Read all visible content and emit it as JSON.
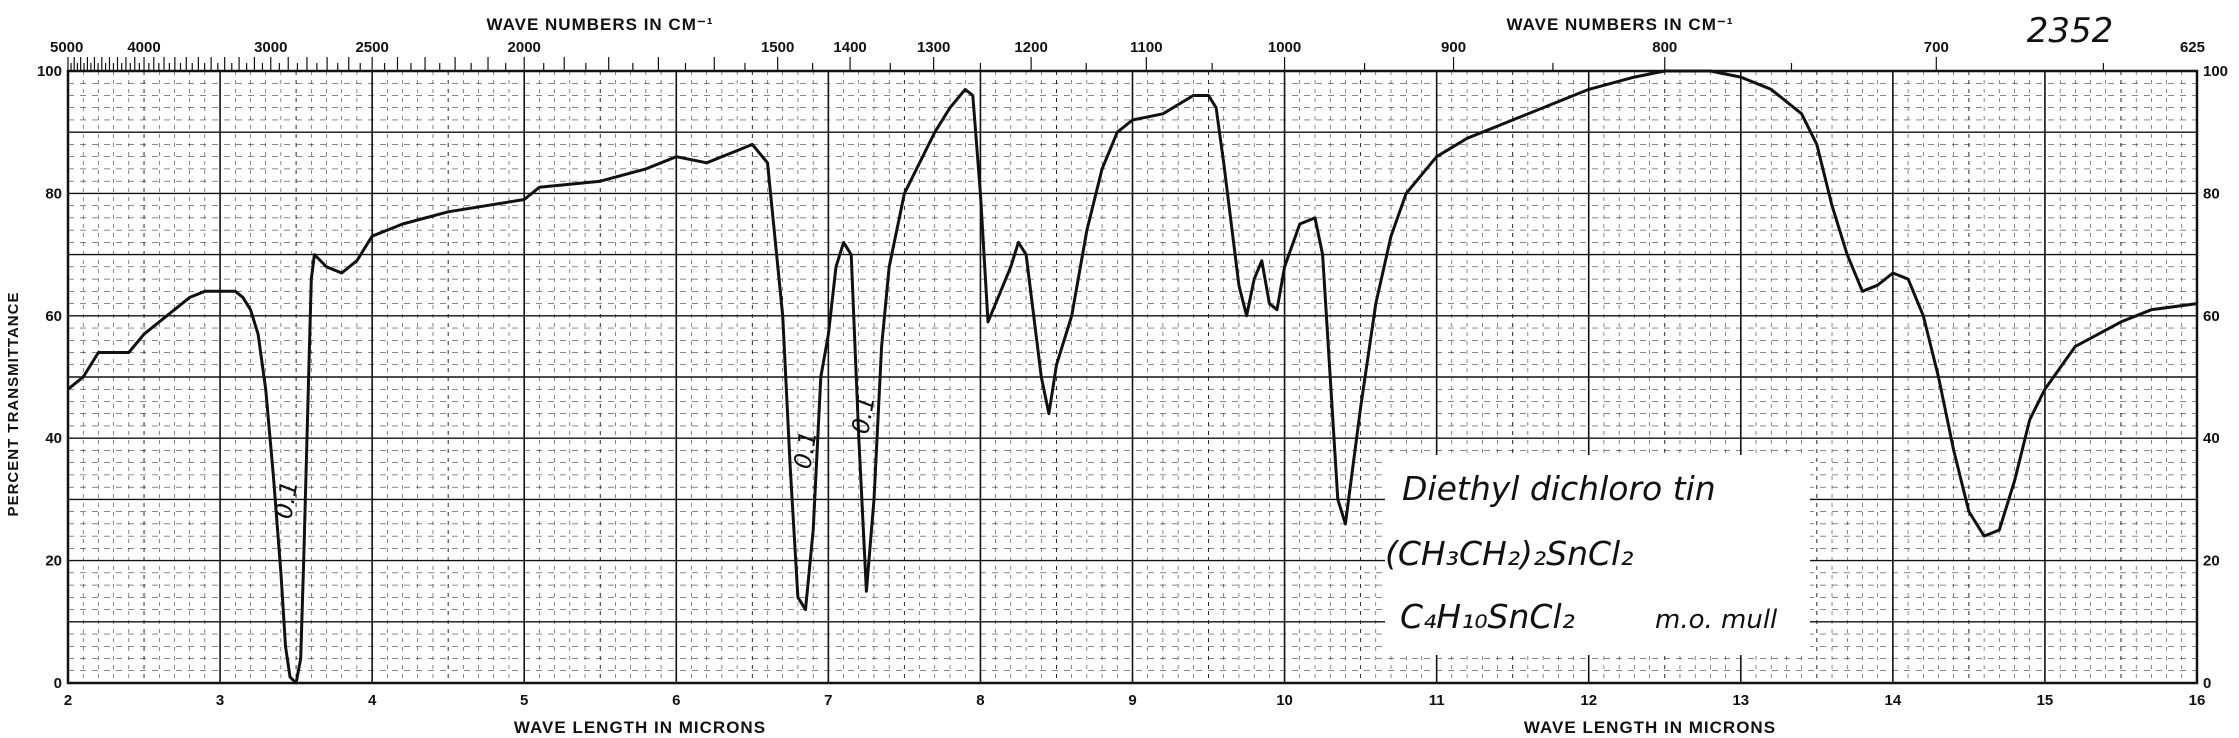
{
  "chart_data": {
    "type": "line",
    "title": "",
    "top_axis_title": "WAVE NUMBERS IN CM⁻¹",
    "top_axis_title_right": "WAVE NUMBERS IN CM⁻¹",
    "xlabel": "WAVE LENGTH IN MICRONS",
    "xlabel_right": "WAVE LENGTH IN MICRONS",
    "ylabel": "PERCENT TRANSMITTANCE",
    "xlim": [
      2,
      16
    ],
    "ylim": [
      0,
      100
    ],
    "grid": true,
    "x_ticks": [
      "2",
      "3",
      "4",
      "5",
      "6",
      "7",
      "8",
      "9",
      "10",
      "11",
      "12",
      "13",
      "14",
      "15",
      "16"
    ],
    "y_ticks": [
      "0",
      "20",
      "40",
      "60",
      "80",
      "100"
    ],
    "top_ticks": [
      {
        "label": "5000",
        "wavenumber": 5000
      },
      {
        "label": "4000",
        "wavenumber": 4000
      },
      {
        "label": "3000",
        "wavenumber": 3000
      },
      {
        "label": "2500",
        "wavenumber": 2500
      },
      {
        "label": "2000",
        "wavenumber": 2000
      },
      {
        "label": "1500",
        "wavenumber": 1500
      },
      {
        "label": "1400",
        "wavenumber": 1400
      },
      {
        "label": "1300",
        "wavenumber": 1300
      },
      {
        "label": "1200",
        "wavenumber": 1200
      },
      {
        "label": "1100",
        "wavenumber": 1100
      },
      {
        "label": "1000",
        "wavenumber": 1000
      },
      {
        "label": "900",
        "wavenumber": 900
      },
      {
        "label": "800",
        "wavenumber": 800
      },
      {
        "label": "700",
        "wavenumber": 700
      },
      {
        "label": "625",
        "wavenumber": 625
      }
    ],
    "series": [
      {
        "points": [
          [
            2.0,
            48
          ],
          [
            2.1,
            50
          ],
          [
            2.2,
            54
          ],
          [
            2.3,
            54
          ],
          [
            2.4,
            54
          ],
          [
            2.5,
            57
          ],
          [
            2.6,
            59
          ],
          [
            2.7,
            61
          ],
          [
            2.8,
            63
          ],
          [
            2.9,
            64
          ],
          [
            3.0,
            64
          ],
          [
            3.1,
            64
          ],
          [
            3.15,
            63
          ],
          [
            3.2,
            61
          ],
          [
            3.25,
            57
          ],
          [
            3.3,
            48
          ],
          [
            3.35,
            34
          ],
          [
            3.4,
            18
          ],
          [
            3.43,
            6
          ],
          [
            3.46,
            1
          ],
          [
            3.5,
            0
          ],
          [
            3.53,
            4
          ],
          [
            3.55,
            20
          ],
          [
            3.58,
            48
          ],
          [
            3.6,
            66
          ],
          [
            3.62,
            70
          ],
          [
            3.7,
            68
          ],
          [
            3.8,
            67
          ],
          [
            3.9,
            69
          ],
          [
            4.0,
            73
          ],
          [
            4.1,
            74
          ],
          [
            4.2,
            75
          ],
          [
            4.5,
            77
          ],
          [
            5.0,
            79
          ],
          [
            5.1,
            81
          ],
          [
            5.5,
            82
          ],
          [
            5.8,
            84
          ],
          [
            6.0,
            86
          ],
          [
            6.2,
            85
          ],
          [
            6.4,
            87
          ],
          [
            6.5,
            88
          ],
          [
            6.6,
            85
          ],
          [
            6.7,
            60
          ],
          [
            6.75,
            35
          ],
          [
            6.8,
            14
          ],
          [
            6.85,
            12
          ],
          [
            6.9,
            25
          ],
          [
            6.95,
            50
          ],
          [
            7.0,
            57
          ],
          [
            7.05,
            68
          ],
          [
            7.1,
            72
          ],
          [
            7.15,
            70
          ],
          [
            7.2,
            40
          ],
          [
            7.25,
            15
          ],
          [
            7.3,
            30
          ],
          [
            7.35,
            55
          ],
          [
            7.4,
            68
          ],
          [
            7.5,
            80
          ],
          [
            7.6,
            85
          ],
          [
            7.7,
            90
          ],
          [
            7.8,
            94
          ],
          [
            7.9,
            97
          ],
          [
            7.95,
            96
          ],
          [
            8.0,
            80
          ],
          [
            8.05,
            59
          ],
          [
            8.1,
            62
          ],
          [
            8.2,
            68
          ],
          [
            8.25,
            72
          ],
          [
            8.3,
            70
          ],
          [
            8.4,
            50
          ],
          [
            8.45,
            44
          ],
          [
            8.5,
            52
          ],
          [
            8.6,
            60
          ],
          [
            8.7,
            74
          ],
          [
            8.8,
            84
          ],
          [
            8.9,
            90
          ],
          [
            9.0,
            92
          ],
          [
            9.2,
            93
          ],
          [
            9.4,
            96
          ],
          [
            9.5,
            96
          ],
          [
            9.55,
            94
          ],
          [
            9.6,
            85
          ],
          [
            9.7,
            65
          ],
          [
            9.75,
            60
          ],
          [
            9.8,
            66
          ],
          [
            9.85,
            69
          ],
          [
            9.9,
            62
          ],
          [
            9.95,
            61
          ],
          [
            10.0,
            68
          ],
          [
            10.1,
            75
          ],
          [
            10.2,
            76
          ],
          [
            10.25,
            70
          ],
          [
            10.3,
            50
          ],
          [
            10.35,
            30
          ],
          [
            10.4,
            26
          ],
          [
            10.5,
            45
          ],
          [
            10.6,
            62
          ],
          [
            10.7,
            73
          ],
          [
            10.8,
            80
          ],
          [
            11.0,
            86
          ],
          [
            11.2,
            89
          ],
          [
            11.5,
            92
          ],
          [
            11.8,
            95
          ],
          [
            12.0,
            97
          ],
          [
            12.3,
            99
          ],
          [
            12.5,
            100
          ],
          [
            12.8,
            100
          ],
          [
            13.0,
            99
          ],
          [
            13.2,
            97
          ],
          [
            13.4,
            93
          ],
          [
            13.5,
            88
          ],
          [
            13.6,
            78
          ],
          [
            13.7,
            70
          ],
          [
            13.8,
            64
          ],
          [
            13.9,
            65
          ],
          [
            14.0,
            67
          ],
          [
            14.1,
            66
          ],
          [
            14.2,
            60
          ],
          [
            14.3,
            50
          ],
          [
            14.4,
            38
          ],
          [
            14.5,
            28
          ],
          [
            14.6,
            24
          ],
          [
            14.7,
            25
          ],
          [
            14.8,
            33
          ],
          [
            14.9,
            43
          ],
          [
            15.0,
            48
          ],
          [
            15.2,
            55
          ],
          [
            15.5,
            59
          ],
          [
            15.7,
            61
          ],
          [
            16.0,
            62
          ]
        ]
      }
    ],
    "annotations": {
      "spectrum_number": "2352",
      "peak_marks": [
        "0.1",
        "0.1",
        "0.1"
      ],
      "compound_name": "Diethyl dichloro tin",
      "structural_formula": "(CH₃CH₂)₂SnCl₂",
      "molecular_formula": "C₄H₁₀SnCl₂",
      "sample_prep": "m.o. mull"
    },
    "colors": {
      "ink": "#111111",
      "paper": "#ffffff",
      "box_bg": "#ffffff"
    }
  }
}
